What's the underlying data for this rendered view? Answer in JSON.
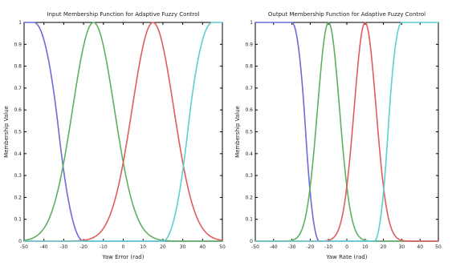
{
  "chart_data": [
    {
      "type": "line",
      "title": "Input Membership Function for Adaptive Fuzzy Control",
      "xlabel": "Yaw Error (rad)",
      "ylabel": "Membership Value",
      "xlim": [
        -50,
        50
      ],
      "ylim": [
        0,
        1
      ],
      "xticks": [
        "-50",
        "-40",
        "-30",
        "-20",
        "-10",
        "0",
        "10",
        "20",
        "30",
        "40",
        "50"
      ],
      "yticks": [
        "0",
        "0.1",
        "0.2",
        "0.3",
        "0.4",
        "0.5",
        "0.6",
        "0.7",
        "0.8",
        "0.9",
        "1"
      ],
      "series": [
        {
          "color": "#6b6bd9",
          "shape": "zmf",
          "a": -45,
          "b": -20
        },
        {
          "color": "#5fb05f",
          "shape": "gauss",
          "mean": -15,
          "sigma": 10.5
        },
        {
          "color": "#e05d5d",
          "shape": "gauss",
          "mean": 15,
          "sigma": 10.5
        },
        {
          "color": "#5dcfcf",
          "shape": "smf",
          "a": 20,
          "b": 45
        }
      ]
    },
    {
      "type": "line",
      "title": "Output Membership Function for Adaptive Fuzzy Control",
      "xlabel": "Yaw Rate (rad)",
      "ylabel": "Membership Value",
      "xlim": [
        -50,
        50
      ],
      "ylim": [
        0,
        1
      ],
      "xticks": [
        "-50",
        "-40",
        "-30",
        "-20",
        "-10",
        "0",
        "10",
        "20",
        "30",
        "40",
        "50"
      ],
      "yticks": [
        "0",
        "0.1",
        "0.2",
        "0.3",
        "0.4",
        "0.5",
        "0.6",
        "0.7",
        "0.8",
        "0.9",
        "1"
      ],
      "series": [
        {
          "color": "#6b6bd9",
          "shape": "zmf",
          "a": -30,
          "b": -15
        },
        {
          "color": "#5fb05f",
          "shape": "gauss",
          "mean": -10,
          "sigma": 6
        },
        {
          "color": "#e05d5d",
          "shape": "gauss",
          "mean": 10,
          "sigma": 6
        },
        {
          "color": "#5dcfcf",
          "shape": "smf",
          "a": 15,
          "b": 30
        }
      ]
    }
  ]
}
